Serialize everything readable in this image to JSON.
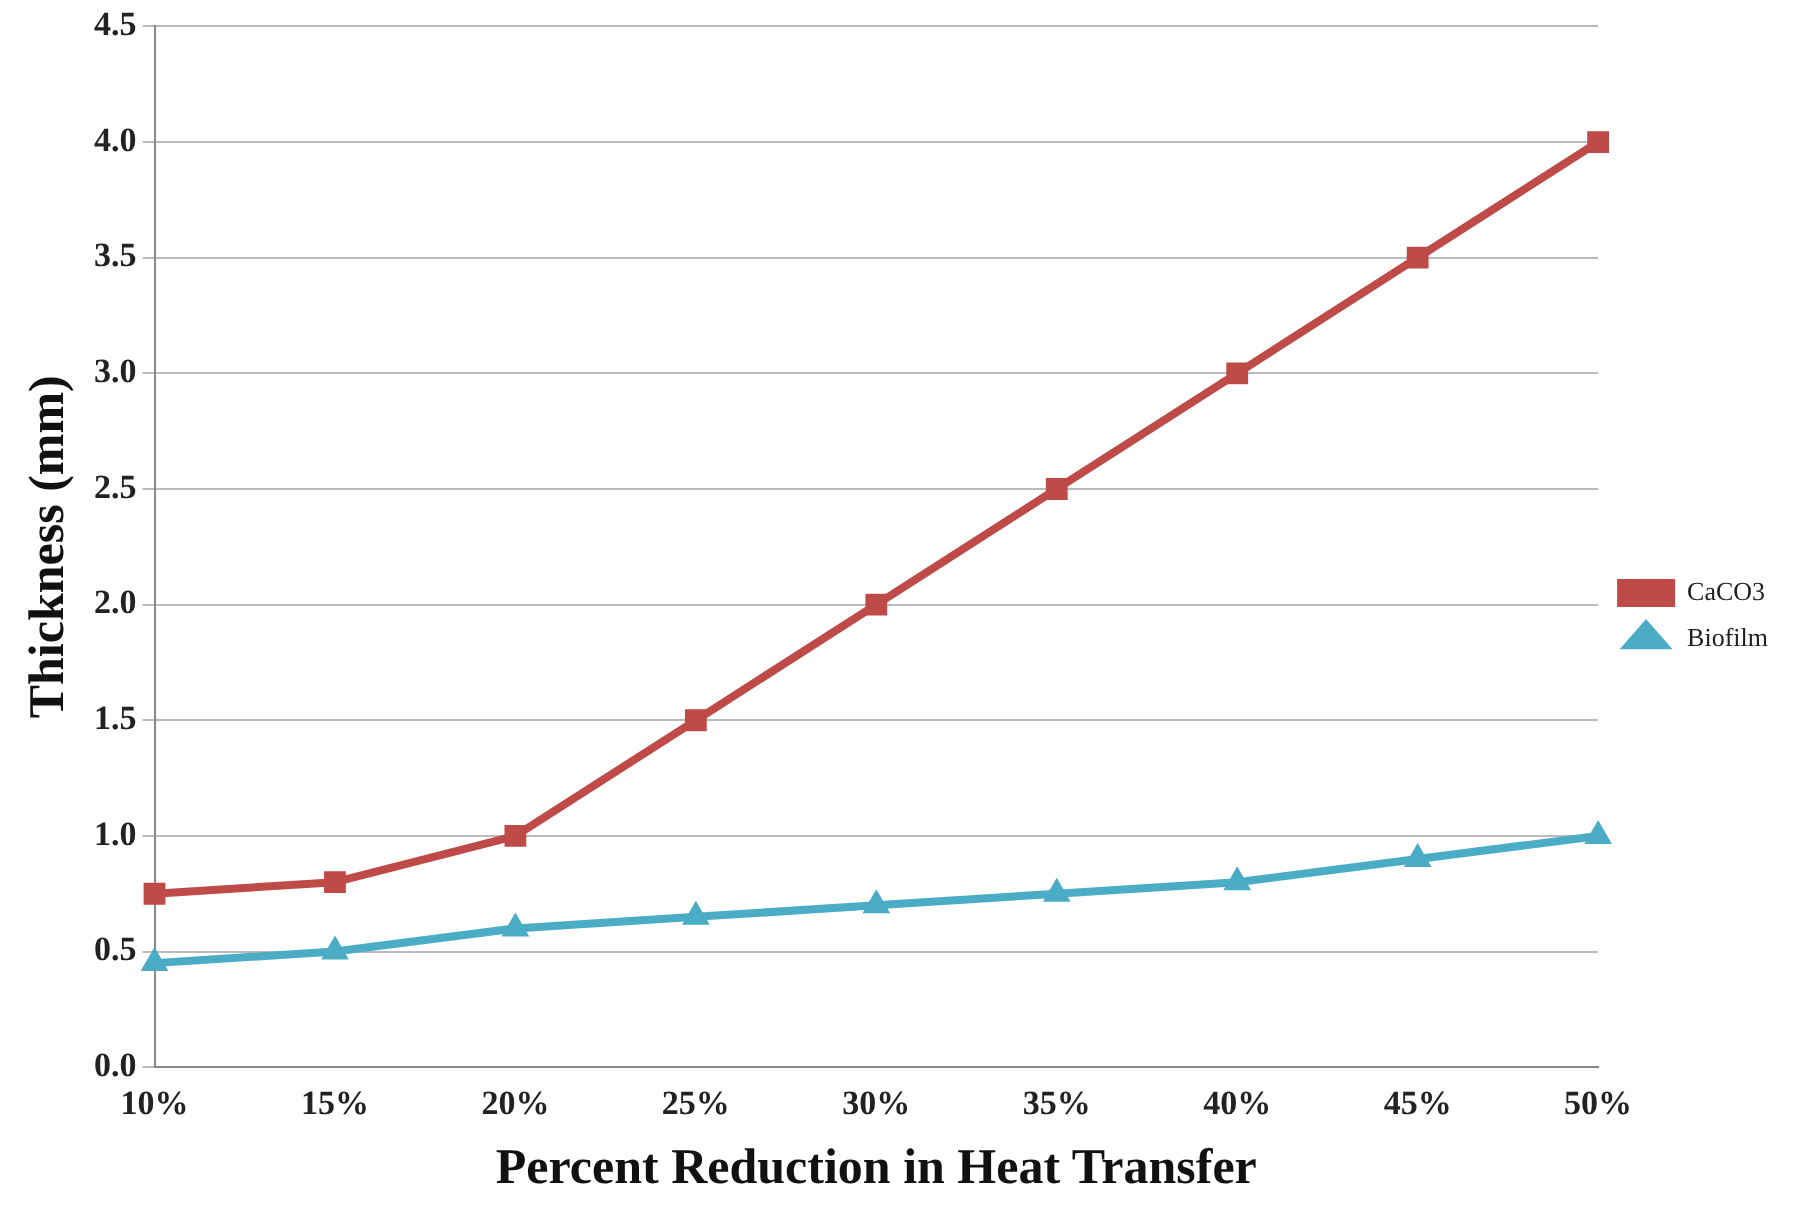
{
  "chart_data": {
    "type": "line",
    "xlabel": "Percent Reduction in Heat Transfer",
    "ylabel": "Thickness (mm)",
    "categories": [
      "10%",
      "15%",
      "20%",
      "25%",
      "30%",
      "35%",
      "40%",
      "45%",
      "50%"
    ],
    "series": [
      {
        "name": "CaCO3",
        "color": "#be4b48",
        "marker": "square",
        "values": [
          0.75,
          0.8,
          1.0,
          1.5,
          2.0,
          2.5,
          3.0,
          3.5,
          4.0
        ]
      },
      {
        "name": "Biofilm",
        "color": "#4bacc6",
        "marker": "triangle",
        "values": [
          0.45,
          0.5,
          0.6,
          0.65,
          0.7,
          0.75,
          0.8,
          0.9,
          1.0
        ]
      }
    ],
    "ylim": [
      0,
      4.5
    ],
    "yticks": [
      {
        "value": 0,
        "label": "0.0"
      },
      {
        "value": 0.5,
        "label": "0.5"
      },
      {
        "value": 1,
        "label": "1.0"
      },
      {
        "value": 1.5,
        "label": "1.5"
      },
      {
        "value": 2,
        "label": "2.0"
      },
      {
        "value": 2.5,
        "label": "2.5"
      },
      {
        "value": 3,
        "label": "3.0"
      },
      {
        "value": 3.5,
        "label": "3.5"
      },
      {
        "value": 4,
        "label": "4.0"
      },
      {
        "value": 4.5,
        "label": "4.5"
      }
    ],
    "grid": "y",
    "legend": "right",
    "line_style": "solid"
  }
}
